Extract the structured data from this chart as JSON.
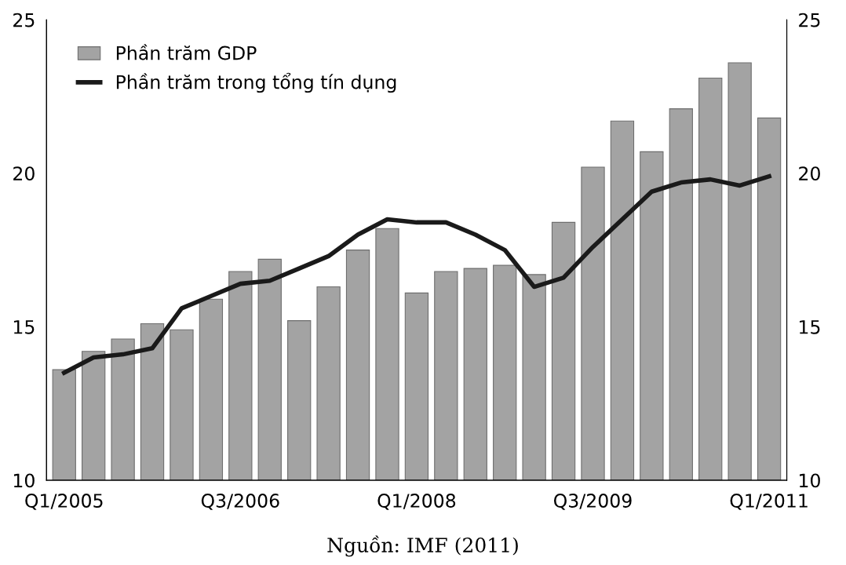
{
  "chart_data": {
    "type": "bar",
    "categories": [
      "Q1/2005",
      null,
      null,
      null,
      null,
      null,
      "Q3/2006",
      null,
      null,
      null,
      null,
      null,
      "Q1/2008",
      null,
      null,
      null,
      null,
      null,
      "Q3/2009",
      null,
      null,
      null,
      null,
      null,
      "Q1/2011"
    ],
    "series": [
      {
        "name": "Phần trăm GDP",
        "color": "#a3a3a3",
        "values": [
          13.6,
          14.2,
          14.6,
          15.1,
          14.9,
          15.9,
          16.8,
          17.2,
          15.2,
          16.3,
          17.5,
          18.2,
          16.1,
          16.8,
          16.9,
          17.0,
          16.7,
          18.4,
          20.2,
          21.7,
          20.7,
          22.1,
          23.1,
          23.6,
          21.8
        ]
      },
      {
        "name": "Phần trăm trong tổng tín dụng",
        "type": "line",
        "color": "#1a1a1a",
        "values": [
          13.5,
          14.0,
          14.1,
          14.3,
          15.6,
          16.0,
          16.4,
          16.5,
          16.9,
          17.3,
          18.0,
          18.5,
          18.4,
          18.4,
          18.0,
          17.5,
          16.3,
          16.6,
          17.6,
          18.5,
          19.4,
          19.7,
          19.8,
          19.6,
          19.9
        ]
      }
    ],
    "ylim": [
      10,
      25
    ],
    "yticks": [
      10,
      15,
      20,
      25
    ],
    "y2lim": [
      10,
      25
    ],
    "y2ticks": [
      10,
      15,
      20,
      25
    ],
    "grid": false,
    "legend": "top left",
    "marker": "none",
    "line_style": "solid",
    "annotations": [
      "Nguồn: IMF (2011)"
    ]
  }
}
